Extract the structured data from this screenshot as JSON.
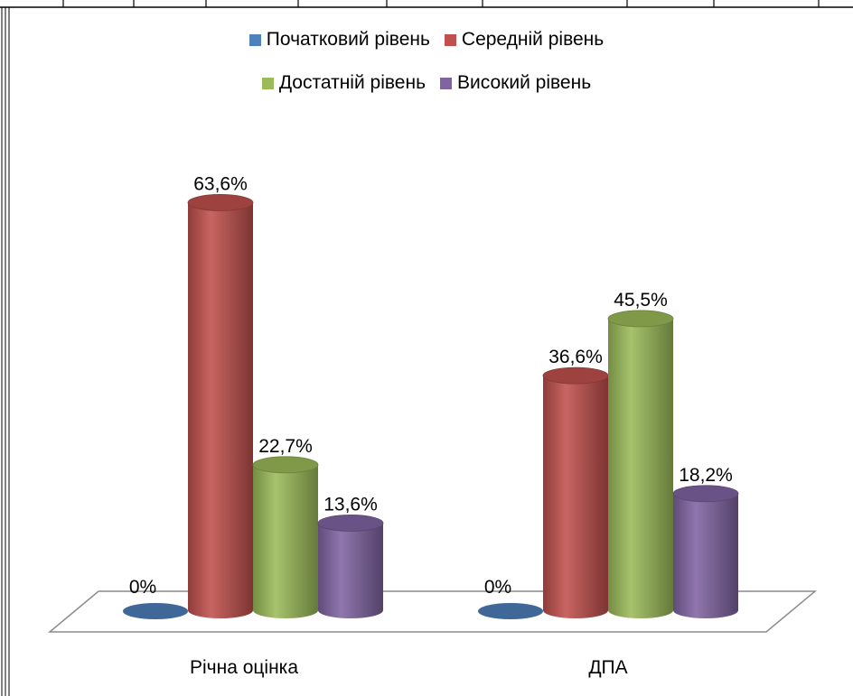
{
  "chart_data": {
    "type": "bar",
    "style": "3d-cylinder",
    "categories": [
      "Річна оцінка",
      "ДПА"
    ],
    "series": [
      {
        "name": "Початковий рівень",
        "color": "#4f81bd",
        "values": [
          0,
          0
        ],
        "labels": [
          "0%",
          "0%"
        ]
      },
      {
        "name": "Середній рівень",
        "color": "#c0504d",
        "values": [
          63.6,
          36.6
        ],
        "labels": [
          "63,6%",
          "36,6%"
        ]
      },
      {
        "name": "Достатній рівень",
        "color": "#9bbb59",
        "values": [
          22.7,
          45.5
        ],
        "labels": [
          "22,7%",
          "45,5%"
        ]
      },
      {
        "name": "Високий рівень",
        "color": "#8064a2",
        "values": [
          13.6,
          18.2
        ],
        "labels": [
          "13,6%",
          "18,2%"
        ]
      }
    ],
    "legend_position": "top",
    "grid": false,
    "ylim": [
      0,
      70
    ],
    "value_unit": "%"
  }
}
